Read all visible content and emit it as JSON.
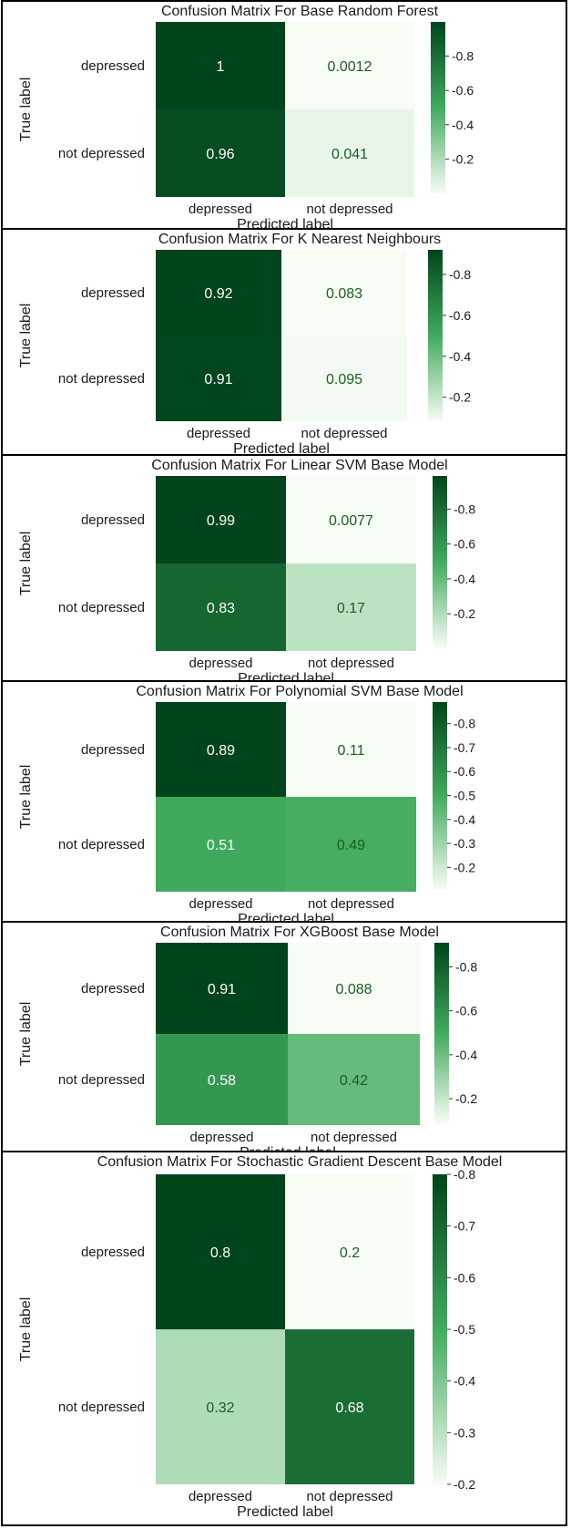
{
  "colormap": {
    "low": "#f7fcf5",
    "mid": "#41ab5d",
    "high": "#00441b",
    "cell_text_dark": "#1b5e20",
    "cell_text_light": "#ffffff"
  },
  "chart_data": [
    {
      "type": "heatmap",
      "title": "Confusion Matrix For Base Random Forest",
      "xlabel": "Predicted label",
      "ylabel": "True label",
      "row_labels": [
        "depressed",
        "not depressed"
      ],
      "col_labels": [
        "depressed",
        "not depressed"
      ],
      "values": [
        [
          1,
          0.0012
        ],
        [
          0.96,
          0.041
        ]
      ],
      "value_labels": [
        [
          "1",
          "0.0012"
        ],
        [
          "0.96",
          "0.041"
        ]
      ],
      "colorbar_range": [
        0,
        1
      ],
      "colorbar_ticks": [
        "0.8",
        "0.6",
        "0.4",
        "0.2"
      ],
      "colorbar_tick_values": [
        0.8,
        0.6,
        0.4,
        0.2
      ]
    },
    {
      "type": "heatmap",
      "title": "Confusion Matrix For K Nearest Neighbours",
      "xlabel": "Predicted label",
      "ylabel": "True label",
      "row_labels": [
        "depressed",
        "not depressed"
      ],
      "col_labels": [
        "depressed",
        "not depressed"
      ],
      "values": [
        [
          0.92,
          0.083
        ],
        [
          0.91,
          0.095
        ]
      ],
      "value_labels": [
        [
          "0.92",
          "0.083"
        ],
        [
          "0.91",
          "0.095"
        ]
      ],
      "colorbar_range": [
        0.083,
        0.92
      ],
      "colorbar_ticks": [
        "0.8",
        "0.6",
        "0.4",
        "0.2"
      ],
      "colorbar_tick_values": [
        0.8,
        0.6,
        0.4,
        0.2
      ]
    },
    {
      "type": "heatmap",
      "title": "Confusion Matrix For Linear SVM Base Model",
      "xlabel": "Predicted label",
      "ylabel": "True label",
      "row_labels": [
        "depressed",
        "not depressed"
      ],
      "col_labels": [
        "depressed",
        "not depressed"
      ],
      "values": [
        [
          0.99,
          0.0077
        ],
        [
          0.83,
          0.17
        ]
      ],
      "value_labels": [
        [
          "0.99",
          "0.0077"
        ],
        [
          "0.83",
          "0.17"
        ]
      ],
      "colorbar_range": [
        0.0077,
        0.99
      ],
      "colorbar_ticks": [
        "0.8",
        "0.6",
        "0.4",
        "0.2"
      ],
      "colorbar_tick_values": [
        0.8,
        0.6,
        0.4,
        0.2
      ]
    },
    {
      "type": "heatmap",
      "title": "Confusion Matrix For Polynomial SVM Base Model",
      "xlabel": "Predicted label",
      "ylabel": "True label",
      "row_labels": [
        "depressed",
        "not depressed"
      ],
      "col_labels": [
        "depressed",
        "not depressed"
      ],
      "values": [
        [
          0.89,
          0.11
        ],
        [
          0.51,
          0.49
        ]
      ],
      "value_labels": [
        [
          "0.89",
          "0.11"
        ],
        [
          "0.51",
          "0.49"
        ]
      ],
      "colorbar_range": [
        0.11,
        0.89
      ],
      "colorbar_ticks": [
        "0.8",
        "0.7",
        "0.6",
        "0.5",
        "0.4",
        "0.3",
        "0.2"
      ],
      "colorbar_tick_values": [
        0.8,
        0.7,
        0.6,
        0.5,
        0.4,
        0.3,
        0.2
      ]
    },
    {
      "type": "heatmap",
      "title": "Confusion Matrix For XGBoost Base Model",
      "xlabel": "Predicted label",
      "ylabel": "True label",
      "row_labels": [
        "depressed",
        "not depressed"
      ],
      "col_labels": [
        "depressed",
        "not depressed"
      ],
      "values": [
        [
          0.91,
          0.088
        ],
        [
          0.58,
          0.42
        ]
      ],
      "value_labels": [
        [
          "0.91",
          "0.088"
        ],
        [
          "0.58",
          "0.42"
        ]
      ],
      "colorbar_range": [
        0.088,
        0.91
      ],
      "colorbar_ticks": [
        "0.8",
        "0.6",
        "0.4",
        "0.2"
      ],
      "colorbar_tick_values": [
        0.8,
        0.6,
        0.4,
        0.2
      ]
    },
    {
      "type": "heatmap",
      "title": "Confusion Matrix For Stochastic Gradient Descent Base Model",
      "xlabel": "Predicted label",
      "ylabel": "True label",
      "row_labels": [
        "depressed",
        "not depressed"
      ],
      "col_labels": [
        "depressed",
        "not depressed"
      ],
      "values": [
        [
          0.8,
          0.2
        ],
        [
          0.32,
          0.68
        ]
      ],
      "value_labels": [
        [
          "0.8",
          "0.2"
        ],
        [
          "0.32",
          "0.68"
        ]
      ],
      "colorbar_range": [
        0.2,
        0.8
      ],
      "colorbar_ticks": [
        "0.8",
        "0.7",
        "0.6",
        "0.5",
        "0.4",
        "0.3",
        "0.2"
      ],
      "colorbar_tick_values": [
        0.8,
        0.7,
        0.6,
        0.5,
        0.4,
        0.3,
        0.2
      ]
    }
  ]
}
